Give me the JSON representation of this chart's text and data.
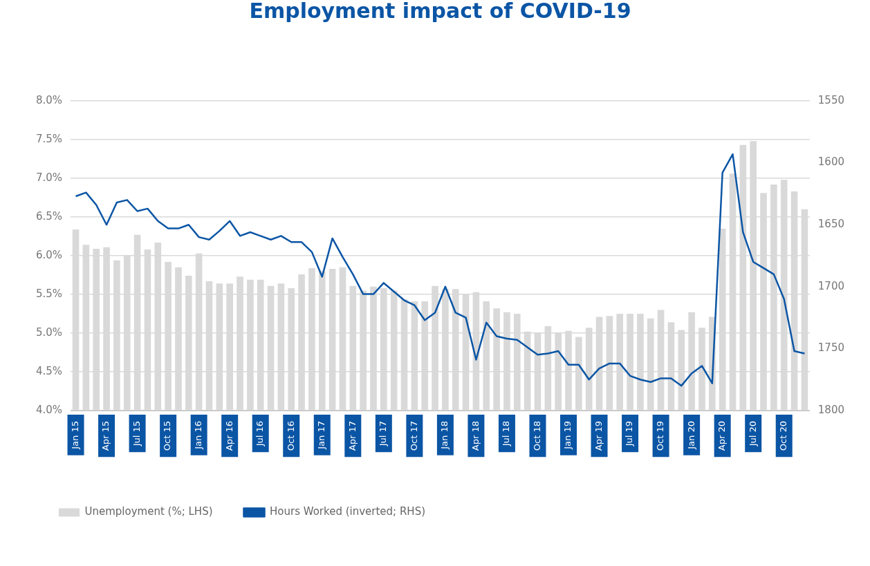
{
  "chart_data": {
    "type": "bar",
    "title": "Employment impact of COVID-19",
    "categories": [
      "Jan 15",
      null,
      null,
      "Apr 15",
      null,
      null,
      "Jul 15",
      null,
      null,
      "Oct 15",
      null,
      null,
      "Jan 16",
      null,
      null,
      "Apr 16",
      null,
      null,
      "Jul 16",
      null,
      null,
      "Oct 16",
      null,
      null,
      "Jan 17",
      null,
      null,
      "Apr 17",
      null,
      null,
      "Jul 17",
      null,
      null,
      "Oct 17",
      null,
      null,
      "Jan 18",
      null,
      null,
      "Apr 18",
      null,
      null,
      "Jul 18",
      null,
      null,
      "Oct 18",
      null,
      null,
      "Jan 19",
      null,
      null,
      "Apr 19",
      null,
      null,
      "Jul 19",
      null,
      null,
      "Oct 19",
      null,
      null,
      "Jan 20",
      null,
      null,
      "Apr 20",
      null,
      null,
      "Jul 20",
      null,
      null,
      "Oct 20",
      null,
      null
    ],
    "series": [
      {
        "name": "Unemployment (%; LHS)",
        "color": "#d9d9d9",
        "values": [
          6.34,
          6.14,
          6.09,
          6.11,
          5.94,
          6.01,
          6.27,
          6.08,
          6.17,
          5.92,
          5.85,
          5.74,
          6.03,
          5.67,
          5.64,
          5.64,
          5.73,
          5.69,
          5.69,
          5.61,
          5.64,
          5.58,
          5.76,
          5.84,
          5.8,
          5.83,
          5.85,
          5.61,
          5.55,
          5.6,
          5.58,
          5.55,
          5.44,
          5.41,
          5.41,
          5.61,
          5.57,
          5.57,
          5.5,
          5.53,
          5.41,
          5.32,
          5.27,
          5.25,
          5.02,
          5.01,
          5.09,
          5.01,
          5.03,
          4.95,
          5.07,
          5.21,
          5.22,
          5.25,
          5.25,
          5.25,
          5.19,
          5.3,
          5.14,
          5.04,
          5.27,
          5.07,
          5.21,
          6.35,
          7.06,
          7.43,
          7.48,
          6.81,
          6.92,
          6.98,
          6.83,
          6.6
        ]
      },
      {
        "name": "Hours Worked (inverted; RHS)",
        "type": "line",
        "axis": "y2",
        "color": "#0b55a5",
        "values": [
          1627,
          1624,
          1634,
          1650,
          1632,
          1630,
          1639,
          1637,
          1647,
          1653,
          1653,
          1650,
          1660,
          1662,
          1655,
          1647,
          1659,
          1656,
          1659,
          1662,
          1659,
          1664,
          1664,
          1672,
          1692,
          1661,
          1676,
          1690,
          1706,
          1706,
          1697,
          1704,
          1711,
          1715,
          1727,
          1721,
          1700,
          1721,
          1725,
          1759,
          1729,
          1740,
          1742,
          1743,
          1749,
          1755,
          1754,
          1752,
          1763,
          1763,
          1775,
          1766,
          1762,
          1762,
          1772,
          1775,
          1777,
          1774,
          1774,
          1780,
          1770,
          1764,
          1778,
          1608,
          1593,
          1656,
          1680,
          1685,
          1690,
          1710,
          1752,
          1754
        ]
      }
    ],
    "ylim": [
      4.0,
      8.0
    ],
    "yticks": [
      {
        "value": 4.0,
        "label": "4.0%"
      },
      {
        "value": 4.5,
        "label": "4.5%"
      },
      {
        "value": 5.0,
        "label": "5.0%"
      },
      {
        "value": 5.5,
        "label": "5.5%"
      },
      {
        "value": 6.0,
        "label": "6.0%"
      },
      {
        "value": 6.5,
        "label": "6.5%"
      },
      {
        "value": 7.0,
        "label": "7.0%"
      },
      {
        "value": 7.5,
        "label": "7.5%"
      },
      {
        "value": 8.0,
        "label": "8.0%"
      }
    ],
    "y2lim": [
      1800,
      1550
    ],
    "y2ticks": [
      1550,
      1600,
      1650,
      1700,
      1750,
      1800
    ],
    "grid": "y",
    "legend": "bottom left",
    "marker": "none",
    "line_style": "solid"
  }
}
